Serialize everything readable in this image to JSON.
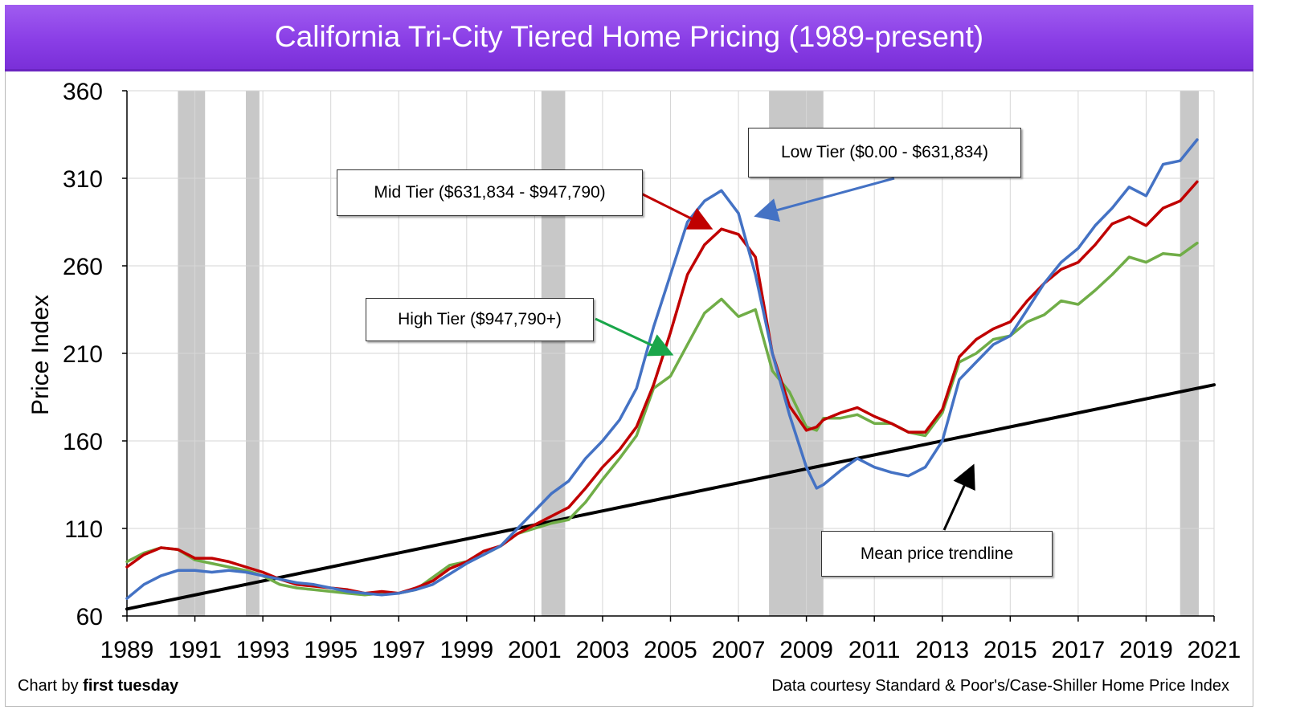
{
  "title": "California Tri-City Tiered Home Pricing (1989-present)",
  "footer": {
    "credit_prefix": "Chart by",
    "credit_brand": "first tuesday",
    "source": "Data courtesy Standard & Poor's/Case-Shiller Home Price Index"
  },
  "callouts": {
    "low": "Low Tier ($0.00 - $631,834)",
    "mid": "Mid Tier ($631,834 - $947,790)",
    "high": "High Tier ($947,790+)",
    "trend": "Mean price trendline"
  },
  "chart_data": {
    "type": "line",
    "ylabel": "Price Index",
    "xlabel": "",
    "ylim": [
      60,
      360
    ],
    "xlim": [
      1989,
      2021
    ],
    "yticks": [
      60,
      110,
      160,
      210,
      260,
      310,
      360
    ],
    "xticks": [
      1989,
      1991,
      1993,
      1995,
      1997,
      1999,
      2001,
      2003,
      2005,
      2007,
      2009,
      2011,
      2013,
      2015,
      2017,
      2019,
      2021
    ],
    "grid": true,
    "recessions": [
      [
        1990.5,
        1991.3
      ],
      [
        1992.5,
        1992.9
      ],
      [
        2001.2,
        2001.9
      ],
      [
        2007.9,
        2009.5
      ],
      [
        2020.0,
        2020.55
      ]
    ],
    "colors": {
      "low": "#4472c4",
      "mid": "#c00000",
      "high": "#70ad47",
      "trend": "#000000",
      "recession": "#c8c8c8"
    },
    "series": [
      {
        "key": "low",
        "x": [
          1989,
          1989.5,
          1990,
          1990.5,
          1991,
          1991.5,
          1992,
          1992.5,
          1993,
          1993.5,
          1994,
          1994.5,
          1995,
          1995.5,
          1996,
          1996.5,
          1997,
          1997.5,
          1998,
          1998.5,
          1999,
          1999.5,
          2000,
          2000.5,
          2001,
          2001.5,
          2002,
          2002.5,
          2003,
          2003.5,
          2004,
          2004.5,
          2005,
          2005.5,
          2006,
          2006.5,
          2007,
          2007.5,
          2008,
          2008.5,
          2009,
          2009.3,
          2009.5,
          2010,
          2010.5,
          2011,
          2011.5,
          2012,
          2012.5,
          2013,
          2013.5,
          2014,
          2014.5,
          2015,
          2015.5,
          2016,
          2016.5,
          2017,
          2017.5,
          2018,
          2018.5,
          2019,
          2019.5,
          2020,
          2020.5
        ],
        "values": [
          70,
          78,
          83,
          86,
          86,
          85,
          86,
          85,
          83,
          81,
          79,
          78,
          76,
          74,
          73,
          72,
          73,
          75,
          78,
          84,
          90,
          95,
          100,
          110,
          120,
          130,
          137,
          150,
          160,
          172,
          190,
          225,
          255,
          285,
          297,
          303,
          290,
          255,
          210,
          175,
          145,
          133,
          135,
          143,
          150,
          145,
          142,
          140,
          145,
          160,
          195,
          205,
          215,
          220,
          235,
          250,
          262,
          270,
          283,
          293,
          305,
          300,
          318,
          320,
          332
        ]
      },
      {
        "key": "mid",
        "x": [
          1989,
          1989.5,
          1990,
          1990.5,
          1991,
          1991.5,
          1992,
          1992.5,
          1993,
          1993.5,
          1994,
          1994.5,
          1995,
          1995.5,
          1996,
          1996.5,
          1997,
          1997.5,
          1998,
          1998.5,
          1999,
          1999.5,
          2000,
          2000.5,
          2001,
          2001.5,
          2002,
          2002.5,
          2003,
          2003.5,
          2004,
          2004.5,
          2005,
          2005.5,
          2006,
          2006.5,
          2007,
          2007.5,
          2008,
          2008.5,
          2009,
          2009.3,
          2009.5,
          2010,
          2010.5,
          2011,
          2011.5,
          2012,
          2012.5,
          2013,
          2013.5,
          2014,
          2014.5,
          2015,
          2015.5,
          2016,
          2016.5,
          2017,
          2017.5,
          2018,
          2018.5,
          2019,
          2019.5,
          2020,
          2020.5
        ],
        "values": [
          88,
          95,
          99,
          98,
          93,
          93,
          91,
          88,
          85,
          81,
          78,
          77,
          76,
          75,
          73,
          74,
          73,
          76,
          80,
          87,
          91,
          97,
          100,
          107,
          112,
          117,
          122,
          133,
          145,
          155,
          168,
          192,
          222,
          255,
          272,
          281,
          278,
          265,
          210,
          180,
          166,
          168,
          172,
          176,
          179,
          174,
          170,
          165,
          165,
          178,
          208,
          218,
          224,
          228,
          240,
          250,
          258,
          262,
          272,
          284,
          288,
          283,
          293,
          297,
          308
        ]
      },
      {
        "key": "high",
        "x": [
          1989,
          1989.5,
          1990,
          1990.5,
          1991,
          1991.5,
          1992,
          1992.5,
          1993,
          1993.5,
          1994,
          1994.5,
          1995,
          1995.5,
          1996,
          1996.5,
          1997,
          1997.5,
          1998,
          1998.5,
          1999,
          1999.5,
          2000,
          2000.5,
          2001,
          2001.5,
          2002,
          2002.5,
          2003,
          2003.5,
          2004,
          2004.5,
          2005,
          2005.5,
          2006,
          2006.5,
          2007,
          2007.5,
          2008,
          2008.5,
          2009,
          2009.3,
          2009.5,
          2010,
          2010.5,
          2011,
          2011.5,
          2012,
          2012.5,
          2013,
          2013.5,
          2014,
          2014.5,
          2015,
          2015.5,
          2016,
          2016.5,
          2017,
          2017.5,
          2018,
          2018.5,
          2019,
          2019.5,
          2020,
          2020.5
        ],
        "values": [
          91,
          96,
          99,
          98,
          92,
          90,
          88,
          86,
          83,
          78,
          76,
          75,
          74,
          73,
          72,
          73,
          73,
          75,
          82,
          89,
          91,
          95,
          100,
          107,
          110,
          113,
          115,
          125,
          138,
          150,
          163,
          190,
          197,
          215,
          233,
          241,
          231,
          235,
          200,
          188,
          168,
          166,
          173,
          173,
          175,
          170,
          170,
          165,
          163,
          176,
          205,
          210,
          218,
          220,
          228,
          232,
          240,
          238,
          246,
          255,
          265,
          262,
          267,
          266,
          273
        ]
      },
      {
        "key": "trend",
        "x": [
          1989,
          2021
        ],
        "values": [
          64,
          192
        ]
      }
    ]
  }
}
